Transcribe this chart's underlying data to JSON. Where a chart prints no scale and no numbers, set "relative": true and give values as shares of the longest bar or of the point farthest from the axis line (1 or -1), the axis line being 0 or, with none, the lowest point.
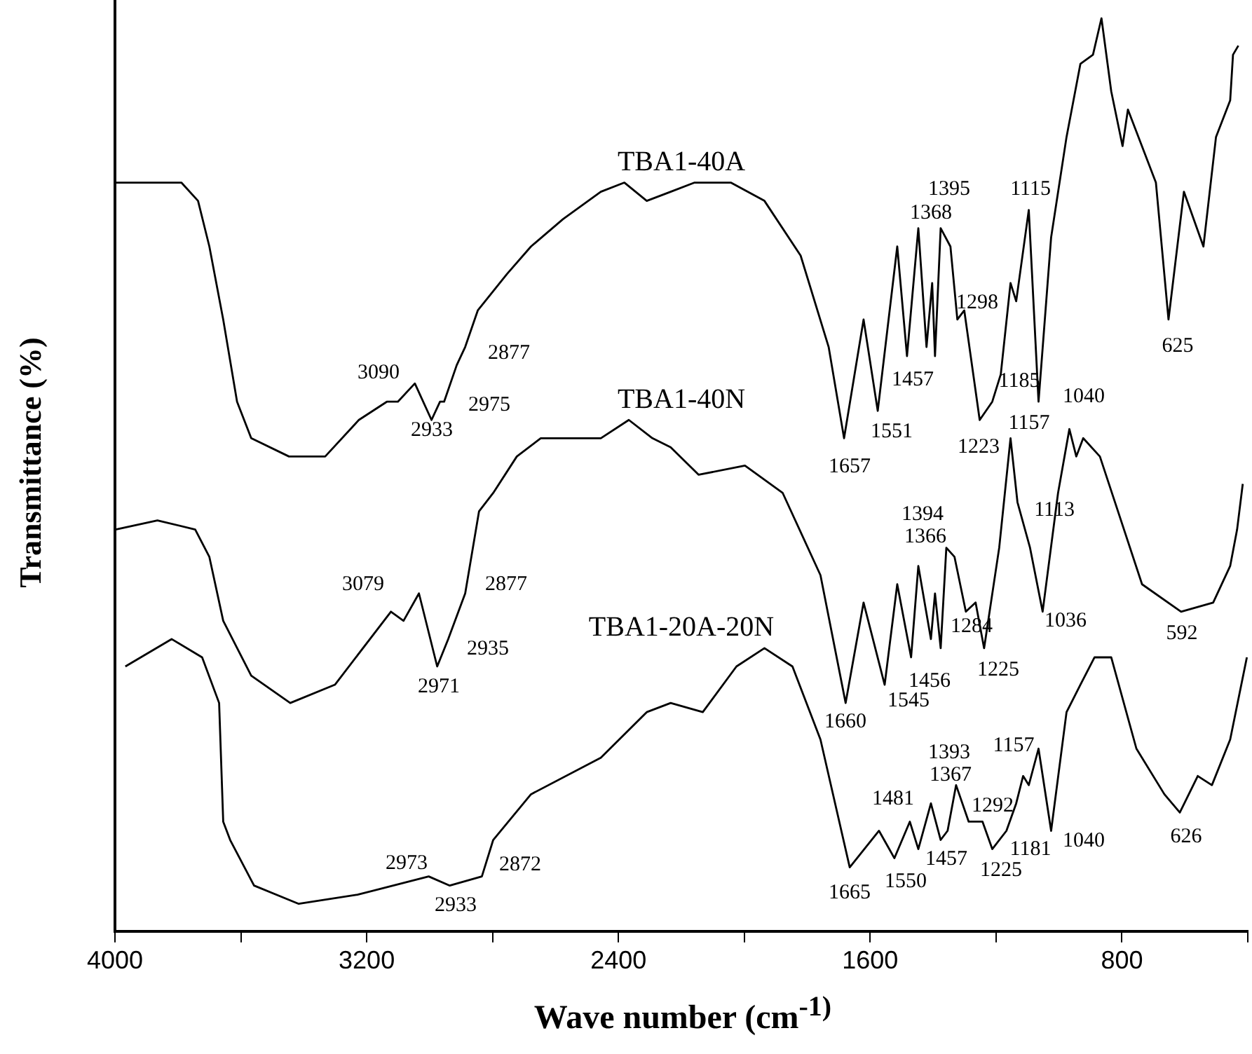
{
  "chart_data": {
    "type": "line",
    "relative": true,
    "xlabel": "Wave number (cm$^{-1)}$",
    "ylabel": "Transmittance (%)",
    "xlim": [
      4000,
      400
    ],
    "xticks": [
      4000,
      {
        "value": 3600,
        "label": null
      },
      3200,
      {
        "value": 2800,
        "label": null
      },
      2400,
      {
        "value": 2000,
        "label": null
      },
      1600,
      {
        "value": 1200,
        "label": null
      },
      800,
      {
        "value": 400,
        "label": null
      }
    ],
    "series": [
      {
        "name": "TBA1-40A",
        "color": "#000000",
        "x": [
          3998,
          3923,
          3789,
          3736,
          3700,
          3656,
          3612,
          3567,
          3447,
          3332,
          3225,
          3136,
          3101,
          3047,
          2994,
          2967,
          2954,
          2914,
          2887,
          2847,
          2754,
          2678,
          2576,
          2456,
          2381,
          2310,
          2234,
          2158,
          2043,
          1936,
          1821,
          1732,
          1683,
          1621,
          1576,
          1514,
          1483,
          1447,
          1421,
          1403,
          1394,
          1376,
          1345,
          1323,
          1301,
          1252,
          1212,
          1185,
          1154,
          1136,
          1096,
          1065,
          1025,
          976,
          932,
          892,
          865,
          834,
          798,
          781,
          692,
          652,
          603,
          541,
          501,
          456,
          447,
          430
        ],
        "values": [
          0.82,
          0.82,
          0.82,
          0.8,
          0.75,
          0.67,
          0.58,
          0.54,
          0.52,
          0.52,
          0.56,
          0.58,
          0.58,
          0.6,
          0.56,
          0.58,
          0.58,
          0.62,
          0.64,
          0.68,
          0.72,
          0.75,
          0.78,
          0.81,
          0.82,
          0.8,
          0.81,
          0.82,
          0.82,
          0.8,
          0.74,
          0.64,
          0.54,
          0.67,
          0.57,
          0.75,
          0.63,
          0.77,
          0.64,
          0.71,
          0.63,
          0.77,
          0.75,
          0.67,
          0.68,
          0.56,
          0.58,
          0.61,
          0.71,
          0.69,
          0.79,
          0.58,
          0.76,
          0.87,
          0.95,
          0.96,
          1.0,
          0.92,
          0.86,
          0.9,
          0.82,
          0.67,
          0.81,
          0.75,
          0.87,
          0.91,
          0.96,
          0.97
        ]
      },
      {
        "name": "TBA1-40N",
        "color": "#000000",
        "x": [
          3998,
          3865,
          3745,
          3700,
          3656,
          3567,
          3443,
          3301,
          3123,
          3083,
          3034,
          2976,
          2941,
          2887,
          2843,
          2798,
          2723,
          2647,
          2456,
          2367,
          2292,
          2234,
          2145,
          1998,
          1878,
          1758,
          1678,
          1621,
          1554,
          1514,
          1470,
          1447,
          1407,
          1394,
          1376,
          1358,
          1332,
          1296,
          1265,
          1238,
          1190,
          1154,
          1132,
          1092,
          1052,
          1003,
          967,
          945,
          923,
          870,
          736,
          612,
          510,
          456,
          434,
          416
        ],
        "values": [
          0.44,
          0.45,
          0.44,
          0.41,
          0.34,
          0.28,
          0.25,
          0.27,
          0.35,
          0.34,
          0.37,
          0.29,
          0.32,
          0.37,
          0.46,
          0.48,
          0.52,
          0.54,
          0.54,
          0.56,
          0.54,
          0.53,
          0.5,
          0.51,
          0.48,
          0.39,
          0.25,
          0.36,
          0.27,
          0.38,
          0.3,
          0.4,
          0.32,
          0.37,
          0.31,
          0.42,
          0.41,
          0.35,
          0.36,
          0.31,
          0.42,
          0.54,
          0.47,
          0.42,
          0.35,
          0.48,
          0.55,
          0.52,
          0.54,
          0.52,
          0.38,
          0.35,
          0.36,
          0.4,
          0.44,
          0.49
        ]
      },
      {
        "name": "TBA1-20A-20N",
        "color": "#000000",
        "x": [
          3967,
          3820,
          3723,
          3669,
          3656,
          3634,
          3558,
          3416,
          3229,
          3003,
          2936,
          2834,
          2798,
          2678,
          2456,
          2310,
          2234,
          2132,
          2025,
          1936,
          1847,
          1758,
          1665,
          1572,
          1523,
          1474,
          1447,
          1407,
          1376,
          1354,
          1327,
          1287,
          1243,
          1212,
          1167,
          1136,
          1114,
          1096,
          1065,
          1025,
          976,
          932,
          887,
          834,
          754,
          665,
          616,
          559,
          514,
          456,
          403
        ],
        "values": [
          0.29,
          0.32,
          0.3,
          0.25,
          0.12,
          0.1,
          0.05,
          0.03,
          0.04,
          0.06,
          0.05,
          0.06,
          0.1,
          0.15,
          0.19,
          0.24,
          0.25,
          0.24,
          0.29,
          0.31,
          0.29,
          0.21,
          0.07,
          0.11,
          0.08,
          0.12,
          0.09,
          0.14,
          0.1,
          0.11,
          0.16,
          0.12,
          0.12,
          0.09,
          0.11,
          0.14,
          0.17,
          0.16,
          0.2,
          0.11,
          0.24,
          0.27,
          0.3,
          0.3,
          0.2,
          0.15,
          0.13,
          0.17,
          0.16,
          0.21,
          0.3
        ]
      }
    ],
    "annotations": [
      "3090",
      "2933",
      "2975",
      "2877",
      "1395",
      "1368",
      "1298",
      "1457",
      "1551",
      "1657",
      "1115",
      "1185",
      "1157",
      "1040",
      "1223",
      "625",
      "3079",
      "2971",
      "2935",
      "2877",
      "1394",
      "1366",
      "1113",
      "1284",
      "1456",
      "1225",
      "1036",
      "592",
      "1660",
      "1545",
      "2973",
      "2933",
      "2872",
      "1481",
      "1393",
      "1367",
      "1292",
      "1157",
      "1457",
      "1225",
      "1181",
      "1040",
      "626",
      "1665",
      "1550"
    ]
  }
}
